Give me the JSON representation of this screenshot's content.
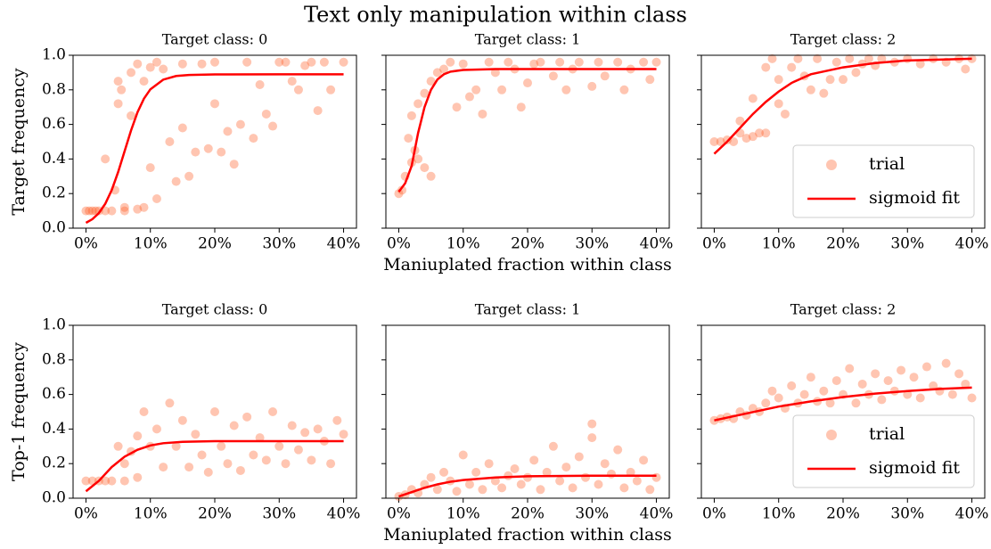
{
  "title": "Text only manipulation within class",
  "chart_data": [
    {
      "type": "scatter",
      "subtitle": "Target class: 0",
      "ylabel": "Target frequency",
      "xlim": [
        -2,
        42
      ],
      "ylim": [
        0,
        1
      ],
      "xticks": [
        {
          "value": 0,
          "label": "0%"
        },
        {
          "value": 10,
          "label": "10%"
        },
        {
          "value": 20,
          "label": "20%"
        },
        {
          "value": 30,
          "label": "30%"
        },
        {
          "value": 40,
          "label": "40%"
        }
      ],
      "yticks": [
        {
          "value": 0,
          "label": "0.0"
        },
        0.2,
        0.4,
        0.6,
        0.8,
        {
          "value": 1,
          "label": "1.0"
        }
      ],
      "series": [
        {
          "name": "trial",
          "color": "#ff5a1f",
          "x": [
            0,
            0.5,
            1,
            1.5,
            2,
            3,
            3,
            4,
            4.5,
            5,
            5,
            5.5,
            6,
            6,
            7,
            7,
            8,
            8,
            9,
            9,
            10,
            10,
            11,
            11,
            12,
            13,
            14,
            15,
            15,
            16,
            17,
            18,
            19,
            20,
            20,
            21,
            22,
            23,
            24,
            25,
            26,
            27,
            28,
            29,
            30,
            31,
            32,
            33,
            34,
            35,
            36,
            37,
            38,
            40
          ],
          "values": [
            0.1,
            0.1,
            0.1,
            0.1,
            0.1,
            0.1,
            0.4,
            0.1,
            0.22,
            0.72,
            0.85,
            0.8,
            0.1,
            0.12,
            0.65,
            0.9,
            0.95,
            0.11,
            0.12,
            0.85,
            0.35,
            0.93,
            0.17,
            0.96,
            0.92,
            0.5,
            0.27,
            0.58,
            0.95,
            0.3,
            0.44,
            0.95,
            0.46,
            0.72,
            0.96,
            0.44,
            0.56,
            0.37,
            0.6,
            0.96,
            0.52,
            0.83,
            0.66,
            0.59,
            0.96,
            0.96,
            0.85,
            0.8,
            0.94,
            0.96,
            0.68,
            0.96,
            0.8,
            0.96
          ]
        },
        {
          "name": "sigmoid fit",
          "type": "line",
          "color": "#ff0000",
          "x": [
            0,
            1,
            2,
            3,
            4,
            5,
            6,
            7,
            8,
            9,
            10,
            12,
            14,
            16,
            20,
            30,
            40
          ],
          "values": [
            0.031,
            0.052,
            0.087,
            0.141,
            0.22,
            0.325,
            0.445,
            0.565,
            0.67,
            0.749,
            0.803,
            0.859,
            0.88,
            0.886,
            0.889,
            0.89,
            0.89
          ]
        }
      ]
    },
    {
      "type": "scatter",
      "subtitle": "Target class: 1",
      "xlabel": "Maniuplated fraction within class",
      "xlim": [
        -2,
        42
      ],
      "ylim": [
        0,
        1
      ],
      "xticks": [
        {
          "value": 0,
          "label": "0%"
        },
        {
          "value": 10,
          "label": "10%"
        },
        {
          "value": 20,
          "label": "20%"
        },
        {
          "value": 30,
          "label": "30%"
        },
        {
          "value": 40,
          "label": "40%"
        }
      ],
      "yticks": [
        0,
        0.2,
        0.4,
        0.6,
        0.8,
        1
      ],
      "series": [
        {
          "name": "trial",
          "color": "#ff5a1f",
          "x": [
            0,
            0.5,
            1,
            1.5,
            2,
            2,
            2.5,
            3,
            3,
            4,
            4,
            5,
            5,
            6,
            7,
            8,
            9,
            10,
            11,
            12,
            13,
            14,
            15,
            16,
            17,
            18,
            19,
            20,
            21,
            22,
            24,
            25,
            26,
            27,
            28,
            30,
            31,
            32,
            34,
            35,
            36,
            38,
            39,
            40
          ],
          "values": [
            0.2,
            0.22,
            0.3,
            0.52,
            0.38,
            0.65,
            0.45,
            0.72,
            0.4,
            0.78,
            0.35,
            0.3,
            0.85,
            0.9,
            0.92,
            0.96,
            0.7,
            0.95,
            0.76,
            0.8,
            0.66,
            0.96,
            0.9,
            0.8,
            0.96,
            0.92,
            0.7,
            0.84,
            0.95,
            0.96,
            0.88,
            0.96,
            0.8,
            0.92,
            0.96,
            0.82,
            0.96,
            0.88,
            0.96,
            0.8,
            0.92,
            0.96,
            0.86,
            0.96
          ]
        },
        {
          "name": "sigmoid fit",
          "type": "line",
          "color": "#ff0000",
          "x": [
            0,
            1,
            2,
            3,
            4,
            5,
            6,
            7,
            8,
            10,
            15,
            40
          ],
          "values": [
            0.21,
            0.26,
            0.36,
            0.55,
            0.7,
            0.8,
            0.86,
            0.89,
            0.905,
            0.915,
            0.92,
            0.92
          ]
        }
      ]
    },
    {
      "type": "scatter",
      "subtitle": "Target class: 2",
      "legend": "lower right",
      "xlim": [
        -2,
        42
      ],
      "ylim": [
        0,
        1
      ],
      "xticks": [
        {
          "value": 0,
          "label": "0%"
        },
        {
          "value": 10,
          "label": "10%"
        },
        {
          "value": 20,
          "label": "20%"
        },
        {
          "value": 30,
          "label": "30%"
        },
        {
          "value": 40,
          "label": "40%"
        }
      ],
      "yticks": [
        0,
        0.2,
        0.4,
        0.6,
        0.8,
        1
      ],
      "series": [
        {
          "name": "trial",
          "color": "#ff5a1f",
          "x": [
            0,
            1,
            2,
            3,
            4,
            4,
            5,
            6,
            6,
            7,
            8,
            8,
            9,
            10,
            10,
            11,
            12,
            13,
            14,
            15,
            16,
            17,
            18,
            19,
            20,
            21,
            22,
            23,
            24,
            25,
            26,
            28,
            30,
            32,
            34,
            36,
            38,
            39,
            40
          ],
          "values": [
            0.5,
            0.5,
            0.51,
            0.5,
            0.55,
            0.62,
            0.52,
            0.75,
            0.53,
            0.55,
            0.93,
            0.55,
            0.98,
            0.72,
            0.86,
            0.66,
            0.93,
            0.98,
            0.88,
            0.8,
            0.98,
            0.78,
            0.86,
            0.96,
            0.86,
            0.98,
            0.9,
            0.95,
            0.98,
            0.94,
            0.98,
            0.96,
            0.98,
            0.95,
            0.98,
            0.96,
            0.98,
            0.92,
            0.98
          ]
        },
        {
          "name": "sigmoid fit",
          "type": "line",
          "color": "#ff0000",
          "x": [
            0,
            2,
            4,
            6,
            8,
            10,
            12,
            15,
            20,
            25,
            30,
            35,
            40
          ],
          "values": [
            0.43,
            0.5,
            0.58,
            0.66,
            0.73,
            0.79,
            0.84,
            0.89,
            0.93,
            0.955,
            0.97,
            0.975,
            0.98
          ]
        }
      ]
    },
    {
      "type": "scatter",
      "subtitle": "Target class: 0",
      "ylabel": "Top-1 frequency",
      "xlim": [
        -2,
        42
      ],
      "ylim": [
        0,
        1
      ],
      "xticks": [
        {
          "value": 0,
          "label": "0%"
        },
        {
          "value": 10,
          "label": "10%"
        },
        {
          "value": 20,
          "label": "20%"
        },
        {
          "value": 30,
          "label": "30%"
        },
        {
          "value": 40,
          "label": "40%"
        }
      ],
      "yticks": [
        {
          "value": 0,
          "label": "0.0"
        },
        0.2,
        0.4,
        0.6,
        0.8,
        {
          "value": 1,
          "label": "1.0"
        }
      ],
      "series": [
        {
          "name": "trial",
          "color": "#ff5a1f",
          "x": [
            0,
            1,
            2,
            3,
            4,
            5,
            6,
            6,
            7,
            8,
            8,
            9,
            10,
            11,
            12,
            13,
            14,
            15,
            16,
            17,
            18,
            19,
            20,
            21,
            22,
            23,
            24,
            25,
            26,
            27,
            28,
            29,
            30,
            31,
            32,
            33,
            34,
            35,
            36,
            37,
            38,
            39,
            40
          ],
          "values": [
            0.1,
            0.1,
            0.1,
            0.1,
            0.1,
            0.3,
            0.2,
            0.1,
            0.27,
            0.12,
            0.36,
            0.5,
            0.3,
            0.4,
            0.18,
            0.55,
            0.3,
            0.45,
            0.18,
            0.37,
            0.25,
            0.15,
            0.5,
            0.3,
            0.2,
            0.42,
            0.16,
            0.47,
            0.25,
            0.35,
            0.22,
            0.5,
            0.3,
            0.2,
            0.42,
            0.28,
            0.38,
            0.22,
            0.4,
            0.33,
            0.2,
            0.45,
            0.37
          ]
        },
        {
          "name": "sigmoid fit",
          "type": "line",
          "color": "#ff0000",
          "x": [
            0,
            2,
            4,
            6,
            8,
            10,
            12,
            15,
            20,
            40
          ],
          "values": [
            0.04,
            0.1,
            0.18,
            0.24,
            0.28,
            0.305,
            0.318,
            0.326,
            0.33,
            0.33
          ]
        }
      ]
    },
    {
      "type": "scatter",
      "subtitle": "Target class: 1",
      "xlabel": "Maniuplated fraction within class",
      "xlim": [
        -2,
        42
      ],
      "ylim": [
        0,
        1
      ],
      "xticks": [
        {
          "value": 0,
          "label": "0%"
        },
        {
          "value": 10,
          "label": "10%"
        },
        {
          "value": 20,
          "label": "20%"
        },
        {
          "value": 30,
          "label": "30%"
        },
        {
          "value": 40,
          "label": "40%"
        }
      ],
      "yticks": [
        0,
        0.2,
        0.4,
        0.6,
        0.8,
        1
      ],
      "series": [
        {
          "name": "trial",
          "color": "#ff5a1f",
          "x": [
            0,
            1,
            2,
            3,
            4,
            5,
            6,
            7,
            8,
            9,
            10,
            11,
            12,
            13,
            14,
            15,
            16,
            17,
            18,
            19,
            20,
            21,
            22,
            23,
            24,
            25,
            26,
            27,
            28,
            29,
            30,
            30,
            31,
            32,
            33,
            34,
            35,
            36,
            37,
            38,
            39,
            40
          ],
          "values": [
            0.01,
            0.02,
            0.05,
            0.03,
            0.08,
            0.12,
            0.05,
            0.15,
            0.1,
            0.04,
            0.25,
            0.08,
            0.15,
            0.05,
            0.2,
            0.1,
            0.06,
            0.13,
            0.17,
            0.08,
            0.12,
            0.22,
            0.05,
            0.15,
            0.3,
            0.1,
            0.18,
            0.06,
            0.24,
            0.12,
            0.43,
            0.35,
            0.08,
            0.2,
            0.14,
            0.28,
            0.06,
            0.15,
            0.1,
            0.22,
            0.05,
            0.12
          ]
        },
        {
          "name": "sigmoid fit",
          "type": "line",
          "color": "#ff0000",
          "x": [
            0,
            2,
            4,
            6,
            8,
            10,
            15,
            20,
            30,
            40
          ],
          "values": [
            0.01,
            0.035,
            0.06,
            0.08,
            0.095,
            0.105,
            0.12,
            0.127,
            0.13,
            0.13
          ]
        }
      ]
    },
    {
      "type": "scatter",
      "subtitle": "Target class: 2",
      "legend": "lower right",
      "xlim": [
        -2,
        42
      ],
      "ylim": [
        0,
        1
      ],
      "xticks": [
        {
          "value": 0,
          "label": "0%"
        },
        {
          "value": 10,
          "label": "10%"
        },
        {
          "value": 20,
          "label": "20%"
        },
        {
          "value": 30,
          "label": "30%"
        },
        {
          "value": 40,
          "label": "40%"
        }
      ],
      "yticks": [
        0,
        0.2,
        0.4,
        0.6,
        0.8,
        1
      ],
      "series": [
        {
          "name": "trial",
          "color": "#ff5a1f",
          "x": [
            0,
            1,
            2,
            3,
            4,
            5,
            6,
            7,
            8,
            9,
            10,
            11,
            12,
            13,
            14,
            15,
            16,
            17,
            18,
            19,
            20,
            21,
            22,
            23,
            24,
            25,
            26,
            27,
            28,
            29,
            30,
            31,
            32,
            33,
            34,
            35,
            36,
            37,
            38,
            39,
            40
          ],
          "values": [
            0.45,
            0.46,
            0.47,
            0.46,
            0.5,
            0.48,
            0.52,
            0.5,
            0.55,
            0.62,
            0.58,
            0.52,
            0.65,
            0.55,
            0.6,
            0.7,
            0.56,
            0.62,
            0.55,
            0.68,
            0.6,
            0.75,
            0.55,
            0.66,
            0.6,
            0.72,
            0.57,
            0.68,
            0.62,
            0.74,
            0.6,
            0.7,
            0.58,
            0.76,
            0.65,
            0.62,
            0.78,
            0.6,
            0.72,
            0.66,
            0.58
          ]
        },
        {
          "name": "sigmoid fit",
          "type": "line",
          "color": "#ff0000",
          "x": [
            0,
            5,
            10,
            15,
            20,
            25,
            30,
            35,
            40
          ],
          "values": [
            0.45,
            0.49,
            0.53,
            0.56,
            0.585,
            0.605,
            0.62,
            0.632,
            0.64
          ]
        }
      ]
    }
  ]
}
